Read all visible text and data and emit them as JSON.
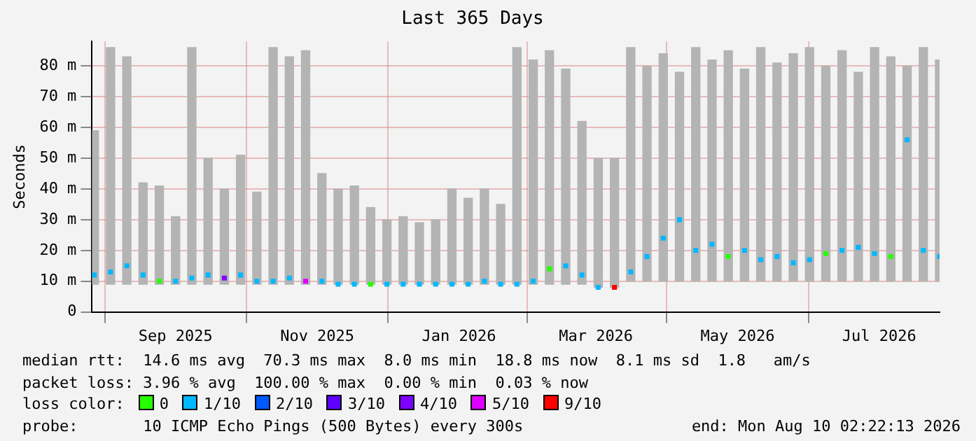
{
  "chart_data": {
    "type": "bar",
    "title": "Last 365 Days",
    "ylabel": "Seconds",
    "x": [
      "2025-08-11",
      "2025-08-18",
      "2025-08-25",
      "2025-09-01",
      "2025-09-08",
      "2025-09-15",
      "2025-09-22",
      "2025-09-29",
      "2025-10-06",
      "2025-10-13",
      "2025-10-20",
      "2025-10-27",
      "2025-11-03",
      "2025-11-10",
      "2025-11-17",
      "2025-11-24",
      "2025-12-01",
      "2025-12-08",
      "2025-12-15",
      "2025-12-22",
      "2025-12-29",
      "2026-01-05",
      "2026-01-12",
      "2026-01-19",
      "2026-01-26",
      "2026-02-02",
      "2026-02-09",
      "2026-02-16",
      "2026-02-23",
      "2026-03-02",
      "2026-03-09",
      "2026-03-16",
      "2026-03-23",
      "2026-03-30",
      "2026-04-06",
      "2026-04-13",
      "2026-04-20",
      "2026-04-27",
      "2026-05-04",
      "2026-05-11",
      "2026-05-18",
      "2026-05-25",
      "2026-06-01",
      "2026-06-08",
      "2026-06-15",
      "2026-06-22",
      "2026-06-29",
      "2026-07-06",
      "2026-07-13",
      "2026-07-20",
      "2026-07-27",
      "2026-08-03",
      "2026-08-10"
    ],
    "series": [
      {
        "color": "#b4b4b4",
        "base": [
          9,
          9,
          9,
          9,
          9,
          9,
          9,
          9,
          9,
          9,
          9,
          9,
          9,
          9,
          9,
          9,
          9,
          9,
          9,
          9,
          9,
          9,
          9,
          9,
          9,
          9,
          9,
          9,
          9,
          9,
          9,
          8,
          8,
          10,
          10,
          10,
          10,
          10,
          10,
          10,
          10,
          10,
          10,
          10,
          10,
          10,
          10,
          10,
          10,
          10,
          10,
          10,
          10
        ],
        "values": [
          50,
          77,
          74,
          33,
          32,
          22,
          77,
          41,
          31,
          42,
          30,
          77,
          74,
          76,
          36,
          31,
          32,
          25,
          21,
          22,
          20,
          21,
          31,
          28,
          31,
          26,
          77,
          73,
          76,
          70,
          53,
          42,
          42,
          76,
          70,
          74,
          68,
          76,
          72,
          75,
          69,
          76,
          71,
          74,
          76,
          70,
          75,
          68,
          76,
          73,
          70,
          76,
          72
        ]
      },
      {
        "type": "scatter",
        "marker": "square",
        "values": [
          12,
          13,
          15,
          12,
          10,
          10,
          11,
          12,
          11,
          12,
          10,
          10,
          11,
          10,
          10,
          9,
          9,
          9,
          9,
          9,
          9,
          9,
          9,
          9,
          10,
          9,
          9,
          10,
          14,
          15,
          12,
          8,
          8,
          13,
          18,
          24,
          30,
          20,
          22,
          18,
          20,
          17,
          18,
          16,
          17,
          19,
          20,
          21,
          19,
          18,
          56,
          20,
          18
        ],
        "colors": [
          "#00b8ff",
          "#00b8ff",
          "#00b8ff",
          "#00b8ff",
          "#26ff00",
          "#00b8ff",
          "#00b8ff",
          "#00b8ff",
          "#7e00ff",
          "#00b8ff",
          "#00b8ff",
          "#00b8ff",
          "#00b8ff",
          "#dd00ff",
          "#00b8ff",
          "#00b8ff",
          "#00b8ff",
          "#26ff00",
          "#00b8ff",
          "#00b8ff",
          "#00b8ff",
          "#00b8ff",
          "#00b8ff",
          "#00b8ff",
          "#00b8ff",
          "#00b8ff",
          "#00b8ff",
          "#00b8ff",
          "#26ff00",
          "#00b8ff",
          "#00b8ff",
          "#00b8ff",
          "#ff0000",
          "#00b8ff",
          "#00b8ff",
          "#00b8ff",
          "#00b8ff",
          "#00b8ff",
          "#00b8ff",
          "#26ff00",
          "#00b8ff",
          "#00b8ff",
          "#00b8ff",
          "#00b8ff",
          "#00b8ff",
          "#26ff00",
          "#00b8ff",
          "#00b8ff",
          "#00b8ff",
          "#26ff00",
          "#00b8ff",
          "#00b8ff",
          "#00b8ff"
        ]
      }
    ],
    "xlim": [
      "2025-08-10",
      "2026-08-10"
    ],
    "xticks": [
      {
        "value": "2025-09-15",
        "label": "Sep 2025"
      },
      {
        "value": "2025-11-15",
        "label": "Nov 2025"
      },
      {
        "value": "2026-01-15",
        "label": "Jan 2026"
      },
      {
        "value": "2026-03-15",
        "label": "Mar 2026"
      },
      {
        "value": "2026-05-15",
        "label": "May 2026"
      },
      {
        "value": "2026-07-15",
        "label": "Jul 2026"
      }
    ],
    "ylim": [
      0,
      88
    ],
    "yticks": [
      {
        "value": 0,
        "label": "0"
      },
      {
        "value": 10,
        "label": "10 m"
      },
      {
        "value": 20,
        "label": "20 m"
      },
      {
        "value": 30,
        "label": "30 m"
      },
      {
        "value": 40,
        "label": "40 m"
      },
      {
        "value": 50,
        "label": "50 m"
      },
      {
        "value": 60,
        "label": "60 m"
      },
      {
        "value": 70,
        "label": "70 m"
      },
      {
        "value": 80,
        "label": "80 m"
      }
    ],
    "grid": true,
    "legend": false,
    "annotations": [
      "median rtt:  14.6 ms avg  70.3 ms max  8.0 ms min  18.8 ms now  8.1 ms sd  1.8   am/s",
      "packet loss: 3.96 % avg  100.00 % max  0.00 % min  0.03 % now",
      "loss color:",
      "0",
      "1/10",
      "2/10",
      "3/10",
      "4/10",
      "5/10",
      "9/10",
      "probe:       10 ICMP Echo Pings (500 Bytes) every 300s",
      "end: Mon Aug 10 02:22:13 2026"
    ]
  }
}
